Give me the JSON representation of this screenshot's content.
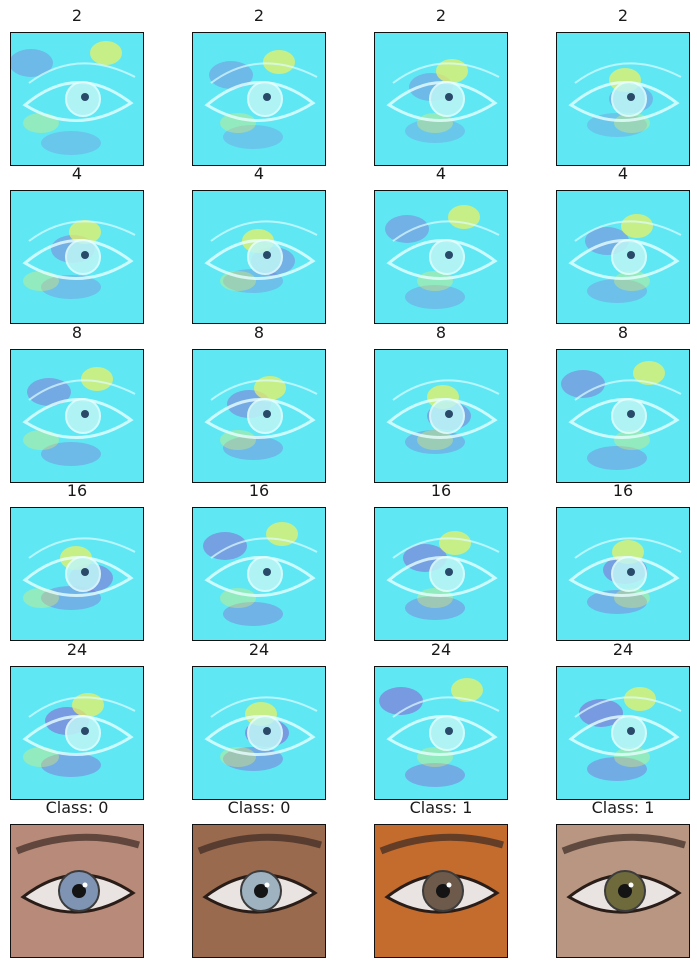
{
  "titles": [
    [
      "2",
      "2",
      "2",
      "2"
    ],
    [
      "4",
      "4",
      "4",
      "4"
    ],
    [
      "8",
      "8",
      "8",
      "8"
    ],
    [
      "16",
      "16",
      "16",
      "16"
    ],
    [
      "24",
      "24",
      "24",
      "24"
    ],
    [
      "Class: 0",
      "Class: 0",
      "Class: 1",
      "Class: 1"
    ]
  ],
  "colors": {
    "heat_base": "#5fe8f4",
    "heat_high": "#f2f25a",
    "heat_low": "#8a63d2",
    "frame": "#111111"
  },
  "photos": [
    {
      "skin": "#b88a7a",
      "iris": "#7f93b2"
    },
    {
      "skin": "#9a6a4e",
      "iris": "#9eb2c0"
    },
    {
      "skin": "#c46b2e",
      "iris": "#6d5a4a"
    },
    {
      "skin": "#b89682",
      "iris": "#6e6a3c"
    }
  ]
}
